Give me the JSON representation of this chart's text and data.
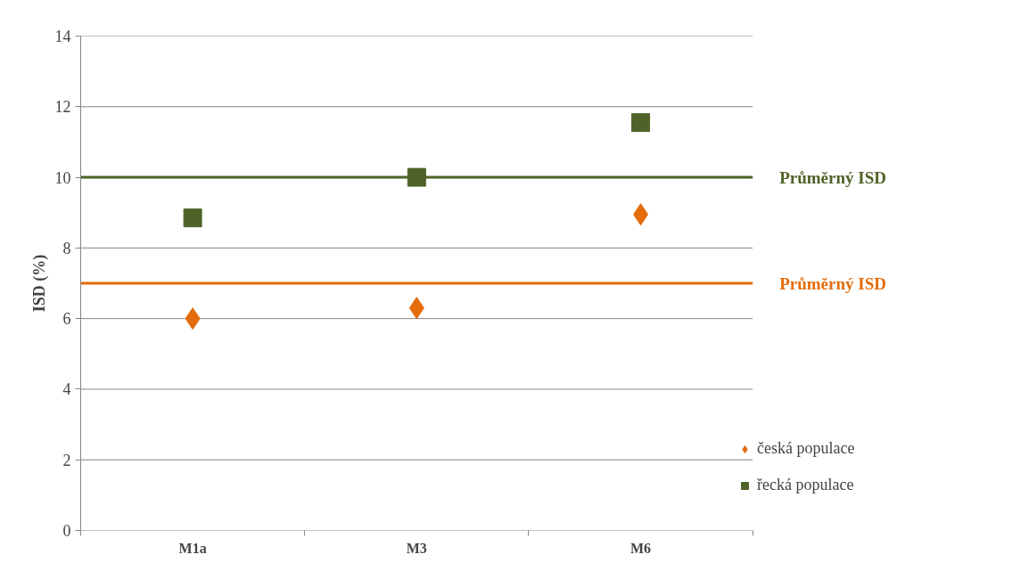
{
  "chart_data": {
    "type": "scatter",
    "ylabel": "ISD (%)",
    "categories": [
      "M1a",
      "M3",
      "M6"
    ],
    "series": [
      {
        "name": "česká populace",
        "color": "#e46c0a",
        "marker": "diamond",
        "values": [
          6.0,
          6.3,
          8.95
        ]
      },
      {
        "name": "řecká populace",
        "color": "#4f6228",
        "marker": "square",
        "values": [
          8.85,
          10.0,
          11.55
        ]
      }
    ],
    "ylim": [
      0,
      14
    ],
    "yticks": [
      0,
      2,
      4,
      6,
      8,
      10,
      12,
      14
    ],
    "grid": "y",
    "legend": "right",
    "ref_lines": [
      {
        "axis": "y",
        "value": 10,
        "label": "Průměrný ISD",
        "color": "#4f6228",
        "line_style": "solid"
      },
      {
        "axis": "y",
        "value": 7,
        "label": "Průměrný ISD",
        "color": "#e46c0a",
        "line_style": "solid"
      }
    ]
  }
}
